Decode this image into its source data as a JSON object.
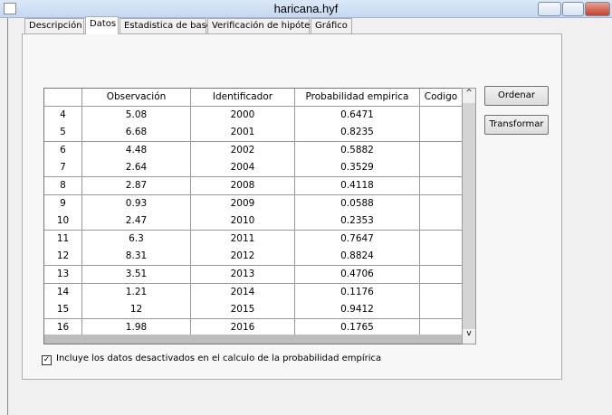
{
  "window": {
    "title": "haricana.hyf"
  },
  "tabs": [
    "Descripción",
    "Datos",
    "Estadistica de base",
    "Verificación de hipótesis",
    "Gráfico"
  ],
  "table": {
    "columns": [
      "Observación",
      "Identificador",
      "Probabilidad empirica",
      "Codigo"
    ],
    "rows": [
      [
        "4",
        "5.08",
        "2000",
        "0.6471"
      ],
      [
        "5",
        "6.68",
        "2001",
        "0.8235"
      ],
      [
        "6",
        "4.48",
        "2002",
        "0.5882"
      ],
      [
        "7",
        "2.64",
        "2004",
        "0.3529"
      ],
      [
        "8",
        "2.87",
        "2008",
        "0.4118"
      ],
      [
        "9",
        "0.93",
        "2009",
        "0.0588"
      ],
      [
        "10",
        "2.47",
        "2010",
        "0.2353"
      ],
      [
        "11",
        "6.3",
        "2011",
        "0.7647"
      ],
      [
        "12",
        "8.31",
        "2012",
        "0.8824"
      ],
      [
        "13",
        "3.51",
        "2013",
        "0.4706"
      ],
      [
        "14",
        "1.21",
        "2014",
        "0.1176"
      ],
      [
        "15",
        "12",
        "2015",
        "0.9412"
      ],
      [
        "16",
        "1.98",
        "2016",
        "0.1765"
      ]
    ]
  },
  "buttons": [
    "Ordenar",
    "Transformar"
  ],
  "checkbox": {
    "label": "Incluye los datos desactivados en el calculo de la probabilidad empírica"
  }
}
